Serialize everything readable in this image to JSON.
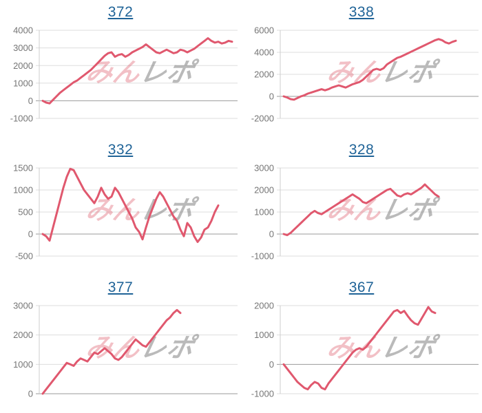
{
  "style": {
    "line_color": "#e0586e",
    "link_color": "#1f6397",
    "grid_color": "#dddddd",
    "zero_line_color": "#999999",
    "axis_line_color": "#cccccc",
    "tick_label_color": "#757575",
    "watermark_pink": "rgba(222,90,105,0.38)",
    "watermark_gray": "rgba(130,130,130,0.55)",
    "background": "#ffffff"
  },
  "watermark": {
    "text_pink": "みん",
    "text_gray": "レポ"
  },
  "chart_data": [
    {
      "type": "line",
      "title": "372",
      "xlabel": "",
      "ylabel": "",
      "ylim": [
        -1000,
        4000
      ],
      "yticks": [
        -1000,
        0,
        1000,
        2000,
        3000,
        4000
      ],
      "grid": true,
      "legend": "none",
      "values": [
        0,
        -100,
        -150,
        50,
        250,
        450,
        600,
        750,
        900,
        1050,
        1150,
        1300,
        1450,
        1600,
        1750,
        1950,
        2150,
        2350,
        2550,
        2700,
        2750,
        2500,
        2600,
        2650,
        2500,
        2600,
        2750,
        2850,
        2950,
        3050,
        3200,
        3050,
        2900,
        2750,
        2700,
        2800,
        2900,
        2800,
        2700,
        2750,
        2900,
        2850,
        2750,
        2850,
        2950,
        3100,
        3250,
        3400,
        3550,
        3400,
        3300,
        3350,
        3250,
        3300,
        3400,
        3350
      ]
    },
    {
      "type": "line",
      "title": "338",
      "xlabel": "",
      "ylabel": "",
      "ylim": [
        -2000,
        6000
      ],
      "yticks": [
        -2000,
        0,
        2000,
        4000,
        6000
      ],
      "grid": true,
      "legend": "none",
      "values": [
        0,
        -100,
        -250,
        -300,
        -150,
        0,
        100,
        250,
        350,
        450,
        550,
        650,
        550,
        650,
        800,
        900,
        1000,
        900,
        800,
        950,
        1100,
        1200,
        1300,
        1500,
        1800,
        2100,
        2400,
        2500,
        2400,
        2550,
        2900,
        3100,
        3300,
        3500,
        3600,
        3750,
        3900,
        4050,
        4200,
        4350,
        4500,
        4650,
        4800,
        4950,
        5100,
        5200,
        5100,
        4900,
        4800,
        4950,
        5050
      ]
    },
    {
      "type": "line",
      "title": "332",
      "xlabel": "",
      "ylabel": "",
      "ylim": [
        -500,
        1500
      ],
      "yticks": [
        -500,
        0,
        500,
        1000,
        1500
      ],
      "grid": true,
      "legend": "none",
      "values": [
        0,
        -50,
        -150,
        150,
        450,
        750,
        1050,
        1300,
        1480,
        1450,
        1300,
        1150,
        1000,
        900,
        800,
        700,
        850,
        1050,
        900,
        800,
        850,
        1050,
        950,
        800,
        650,
        500,
        350,
        150,
        50,
        -120,
        150,
        400,
        600,
        800,
        950,
        850,
        700,
        550,
        400,
        300,
        100,
        -50,
        250,
        150,
        -50,
        -180,
        -80,
        100,
        150,
        300,
        500,
        650
      ]
    },
    {
      "type": "line",
      "title": "328",
      "xlabel": "",
      "ylabel": "",
      "ylim": [
        -1000,
        3000
      ],
      "yticks": [
        -1000,
        0,
        1000,
        2000,
        3000
      ],
      "grid": true,
      "legend": "none",
      "values": [
        0,
        -50,
        50,
        200,
        350,
        500,
        650,
        800,
        950,
        1050,
        950,
        900,
        1000,
        1100,
        1200,
        1300,
        1400,
        1500,
        1600,
        1700,
        1800,
        1700,
        1600,
        1450,
        1400,
        1500,
        1600,
        1700,
        1800,
        1900,
        2000,
        2050,
        1900,
        1750,
        1700,
        1800,
        1850,
        1800,
        1900,
        2000,
        2100,
        2250,
        2100,
        1950,
        1800,
        1700
      ]
    },
    {
      "type": "line",
      "title": "377",
      "xlabel": "",
      "ylabel": "",
      "ylim": [
        0,
        3000
      ],
      "yticks": [
        0,
        1000,
        2000,
        3000
      ],
      "grid": true,
      "legend": "none",
      "values": [
        0,
        150,
        300,
        450,
        600,
        750,
        900,
        1050,
        1000,
        950,
        1100,
        1200,
        1150,
        1100,
        1250,
        1400,
        1350,
        1450,
        1550,
        1450,
        1350,
        1200,
        1150,
        1250,
        1400,
        1550,
        1700,
        1850,
        1750,
        1650,
        1600,
        1750,
        1900,
        2050,
        2200,
        2350,
        2500,
        2600,
        2750,
        2850,
        2750
      ]
    },
    {
      "type": "line",
      "title": "367",
      "xlabel": "",
      "ylabel": "",
      "ylim": [
        -1000,
        2000
      ],
      "yticks": [
        -1000,
        0,
        1000,
        2000
      ],
      "grid": true,
      "legend": "none",
      "values": [
        0,
        -150,
        -300,
        -450,
        -600,
        -700,
        -800,
        -850,
        -700,
        -600,
        -650,
        -800,
        -850,
        -650,
        -500,
        -350,
        -200,
        -50,
        100,
        250,
        400,
        500,
        550,
        500,
        600,
        750,
        900,
        1050,
        1200,
        1350,
        1500,
        1650,
        1800,
        1850,
        1750,
        1820,
        1650,
        1500,
        1400,
        1350,
        1550,
        1750,
        1950,
        1800,
        1750
      ]
    }
  ]
}
